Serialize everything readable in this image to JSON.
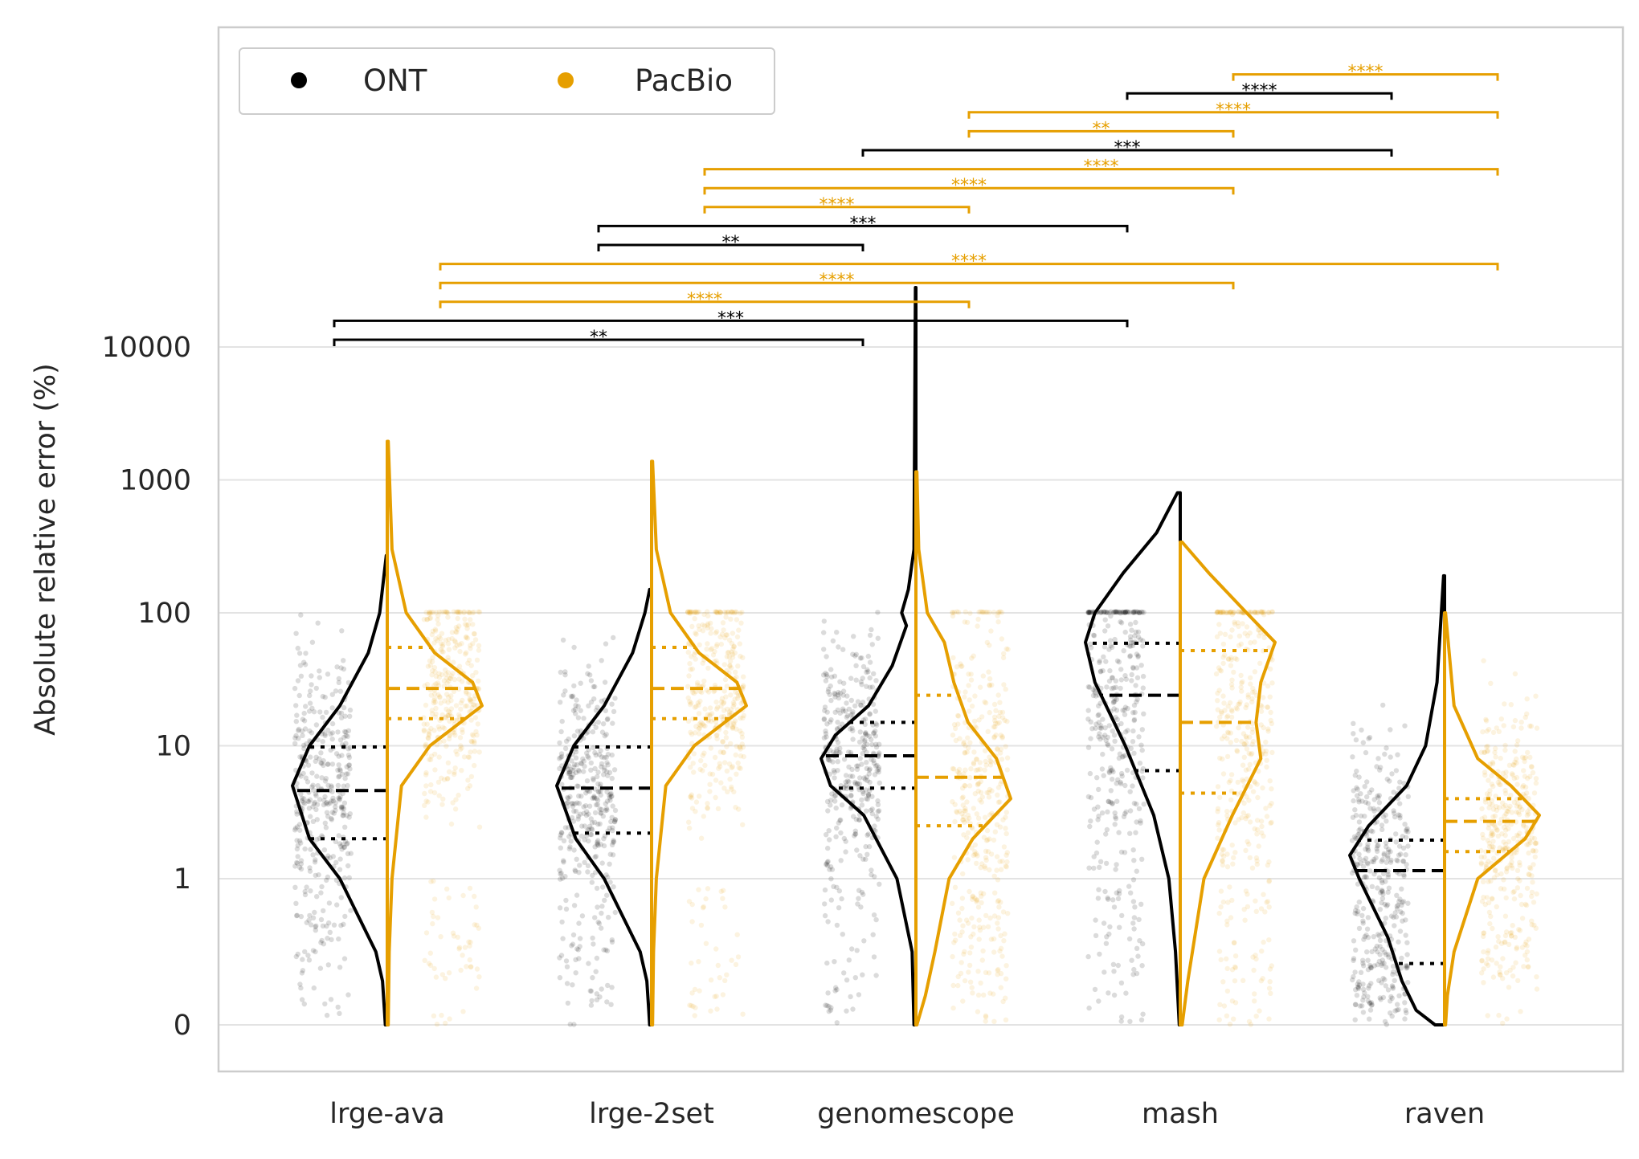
{
  "chart_data": {
    "type": "violin",
    "ylabel": "Absolute relative error (%)",
    "xlabel": "",
    "y_scale": "symlog",
    "y_ticks": [
      0,
      1,
      10,
      100,
      1000,
      10000
    ],
    "y_tick_labels": [
      "0",
      "1",
      "10",
      "100",
      "1000",
      "10000"
    ],
    "grid": "horizontal",
    "categories": [
      "lrge-ava",
      "lrge-2set",
      "genomescope",
      "mash",
      "raven"
    ],
    "legend": {
      "placement": "top-left",
      "entries": [
        "ONT",
        "PacBio"
      ]
    },
    "colors": {
      "ONT": "#000000",
      "PacBio": "#e69f00"
    },
    "series": [
      {
        "name": "ONT",
        "quartiles": [
          {
            "q1": 2.0,
            "median": 4.6,
            "q3": 9.8,
            "max": 270
          },
          {
            "q1": 2.2,
            "median": 4.8,
            "q3": 9.8,
            "max": 150
          },
          {
            "q1": 4.8,
            "median": 8.4,
            "q3": 15,
            "max": 28000
          },
          {
            "q1": 6.5,
            "median": 24,
            "q3": 59,
            "max": 800
          },
          {
            "q1": 0.42,
            "median": 1.15,
            "q3": 1.95,
            "max": 190
          }
        ],
        "density": [
          [
            [
              0,
              0.02
            ],
            [
              0.1,
              0.03
            ],
            [
              0.3,
              0.05
            ],
            [
              0.5,
              0.12
            ],
            [
              1,
              0.5
            ],
            [
              2,
              0.82
            ],
            [
              5,
              1
            ],
            [
              10,
              0.82
            ],
            [
              20,
              0.5
            ],
            [
              50,
              0.2
            ],
            [
              100,
              0.08
            ],
            [
              270,
              0.01
            ]
          ],
          [
            [
              0,
              0.02
            ],
            [
              0.1,
              0.03
            ],
            [
              0.3,
              0.05
            ],
            [
              0.5,
              0.12
            ],
            [
              1,
              0.5
            ],
            [
              2,
              0.8
            ],
            [
              5,
              1
            ],
            [
              10,
              0.82
            ],
            [
              20,
              0.5
            ],
            [
              50,
              0.2
            ],
            [
              100,
              0.07
            ],
            [
              150,
              0.02
            ]
          ],
          [
            [
              0,
              0.02
            ],
            [
              0.5,
              0.04
            ],
            [
              1,
              0.2
            ],
            [
              3,
              0.55
            ],
            [
              5,
              0.9
            ],
            [
              8,
              1
            ],
            [
              12,
              0.85
            ],
            [
              20,
              0.5
            ],
            [
              40,
              0.25
            ],
            [
              80,
              0.1
            ],
            [
              100,
              0.15
            ],
            [
              150,
              0.08
            ],
            [
              300,
              0.02
            ],
            [
              28000,
              0.005
            ]
          ],
          [
            [
              0,
              0.01
            ],
            [
              0.5,
              0.05
            ],
            [
              1,
              0.12
            ],
            [
              3,
              0.28
            ],
            [
              10,
              0.58
            ],
            [
              30,
              0.9
            ],
            [
              60,
              1
            ],
            [
              100,
              0.9
            ],
            [
              200,
              0.6
            ],
            [
              400,
              0.25
            ],
            [
              800,
              0.03
            ]
          ],
          [
            [
              0,
              0.1
            ],
            [
              0.1,
              0.3
            ],
            [
              0.3,
              0.45
            ],
            [
              0.6,
              0.6
            ],
            [
              1,
              0.9
            ],
            [
              1.5,
              1
            ],
            [
              2.5,
              0.8
            ],
            [
              5,
              0.4
            ],
            [
              10,
              0.2
            ],
            [
              30,
              0.08
            ],
            [
              190,
              0.01
            ]
          ]
        ]
      },
      {
        "name": "PacBio",
        "quartiles": [
          {
            "q1": 16,
            "median": 27,
            "q3": 55,
            "max": 1950
          },
          {
            "q1": 16,
            "median": 27,
            "q3": 55,
            "max": 1380
          },
          {
            "q1": 2.5,
            "median": 5.8,
            "q3": 24,
            "max": 1150
          },
          {
            "q1": 4.4,
            "median": 15,
            "q3": 52,
            "max": 340
          },
          {
            "q1": 1.6,
            "median": 2.7,
            "q3": 4.0,
            "max": 100
          }
        ],
        "density": [
          [
            [
              0,
              0.01
            ],
            [
              0.5,
              0.02
            ],
            [
              1,
              0.05
            ],
            [
              5,
              0.15
            ],
            [
              10,
              0.45
            ],
            [
              20,
              1
            ],
            [
              30,
              0.9
            ],
            [
              50,
              0.5
            ],
            [
              100,
              0.2
            ],
            [
              300,
              0.05
            ],
            [
              1950,
              0.01
            ]
          ],
          [
            [
              0,
              0.01
            ],
            [
              0.5,
              0.02
            ],
            [
              1,
              0.05
            ],
            [
              5,
              0.15
            ],
            [
              10,
              0.45
            ],
            [
              20,
              1
            ],
            [
              30,
              0.9
            ],
            [
              50,
              0.5
            ],
            [
              100,
              0.2
            ],
            [
              300,
              0.05
            ],
            [
              1380,
              0.01
            ]
          ],
          [
            [
              0,
              0.01
            ],
            [
              0.2,
              0.1
            ],
            [
              0.5,
              0.2
            ],
            [
              1,
              0.35
            ],
            [
              2,
              0.6
            ],
            [
              4,
              1
            ],
            [
              8,
              0.85
            ],
            [
              15,
              0.55
            ],
            [
              30,
              0.4
            ],
            [
              60,
              0.3
            ],
            [
              100,
              0.12
            ],
            [
              300,
              0.03
            ],
            [
              1150,
              0.01
            ]
          ],
          [
            [
              0,
              0.02
            ],
            [
              0.3,
              0.08
            ],
            [
              1,
              0.25
            ],
            [
              3,
              0.55
            ],
            [
              8,
              0.85
            ],
            [
              15,
              0.8
            ],
            [
              30,
              0.85
            ],
            [
              60,
              1
            ],
            [
              100,
              0.7
            ],
            [
              200,
              0.3
            ],
            [
              340,
              0.02
            ]
          ],
          [
            [
              0,
              0.01
            ],
            [
              0.2,
              0.03
            ],
            [
              0.5,
              0.1
            ],
            [
              1,
              0.35
            ],
            [
              2,
              0.85
            ],
            [
              3,
              1
            ],
            [
              5,
              0.7
            ],
            [
              8,
              0.35
            ],
            [
              20,
              0.1
            ],
            [
              100,
              0.01
            ]
          ]
        ]
      }
    ],
    "significance": [
      {
        "from": "lrge-ava",
        "to": "genomescope",
        "series": "ONT",
        "label": "**"
      },
      {
        "from": "lrge-ava",
        "to": "mash",
        "series": "ONT",
        "label": "***"
      },
      {
        "from": "lrge-ava",
        "to": "genomescope",
        "series": "PacBio",
        "label": "****"
      },
      {
        "from": "lrge-ava",
        "to": "mash",
        "series": "PacBio",
        "label": "****"
      },
      {
        "from": "lrge-ava",
        "to": "raven",
        "series": "PacBio",
        "label": "****"
      },
      {
        "from": "lrge-2set",
        "to": "genomescope",
        "series": "ONT",
        "label": "**"
      },
      {
        "from": "lrge-2set",
        "to": "mash",
        "series": "ONT",
        "label": "***"
      },
      {
        "from": "lrge-2set",
        "to": "genomescope",
        "series": "PacBio",
        "label": "****"
      },
      {
        "from": "lrge-2set",
        "to": "mash",
        "series": "PacBio",
        "label": "****"
      },
      {
        "from": "lrge-2set",
        "to": "raven",
        "series": "PacBio",
        "label": "****"
      },
      {
        "from": "genomescope",
        "to": "raven",
        "series": "ONT",
        "label": "***"
      },
      {
        "from": "genomescope",
        "to": "mash",
        "series": "PacBio",
        "label": "**"
      },
      {
        "from": "genomescope",
        "to": "raven",
        "series": "PacBio",
        "label": "****"
      },
      {
        "from": "mash",
        "to": "raven",
        "series": "ONT",
        "label": "****"
      },
      {
        "from": "mash",
        "to": "raven",
        "series": "PacBio",
        "label": "****"
      }
    ]
  }
}
